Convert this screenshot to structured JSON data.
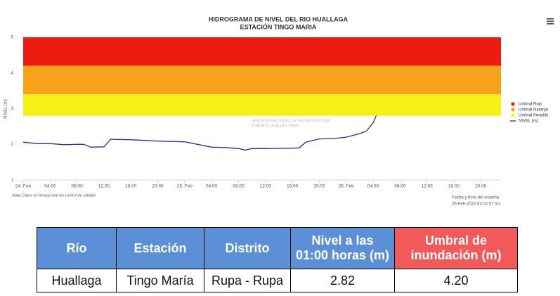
{
  "chart_data": {
    "type": "line",
    "title": "HIDROGRAMA DE NIVEL DEL RIO HUALLAGA",
    "subtitle": "ESTACIÓN TINGO MARIA",
    "y_label": "NIVEL (m)",
    "watermark": "Senamhi",
    "watermark_sub": [
      "SERVICIO NACIONAL DE METEOROLOGÍA",
      "E HIDROLOGÍA DEL PERÚ"
    ],
    "note": "Nota: Datos en tiempo real sin control de calidad",
    "timestamp": [
      "Fecha y hora del sistema",
      "26-Feb-2022 03:02:57 hrs."
    ],
    "xlim": [
      0,
      71
    ],
    "xticks": [
      {
        "value": 0,
        "label": "24. Feb"
      },
      {
        "value": 4,
        "label": "04:00"
      },
      {
        "value": 8,
        "label": "08:00"
      },
      {
        "value": 12,
        "label": "12:00"
      },
      {
        "value": 16,
        "label": "16:00"
      },
      {
        "value": 20,
        "label": "20:00"
      },
      {
        "value": 24,
        "label": "25. Feb"
      },
      {
        "value": 28,
        "label": "04:00"
      },
      {
        "value": 32,
        "label": "08:00"
      },
      {
        "value": 36,
        "label": "12:00"
      },
      {
        "value": 40,
        "label": "16:00"
      },
      {
        "value": 44,
        "label": "20:00"
      },
      {
        "value": 48,
        "label": "26. Feb"
      },
      {
        "value": 52,
        "label": "04:00"
      },
      {
        "value": 56,
        "label": "08:00"
      },
      {
        "value": 60,
        "label": "12:00"
      },
      {
        "value": 64,
        "label": "16:00"
      },
      {
        "value": 68,
        "label": "20:00"
      }
    ],
    "ylim": [
      1,
      5
    ],
    "yticks": [
      1,
      2,
      3,
      4,
      5
    ],
    "bands": [
      {
        "name": "Umbral Rojo",
        "color": "#ee1c10",
        "from": 4.2,
        "to": 5
      },
      {
        "name": "Umbral Naranja",
        "color": "#f7a21b",
        "from": 3.4,
        "to": 4.2
      },
      {
        "name": "Umbral Amarillo",
        "color": "#f8f014",
        "from": 2.8,
        "to": 3.4
      }
    ],
    "x": [
      0,
      2,
      4,
      6,
      8,
      9,
      10,
      12,
      13,
      16,
      20,
      24,
      28,
      30,
      32,
      33,
      34,
      36,
      40,
      41,
      42,
      44,
      46,
      48,
      50,
      51,
      52,
      52.5
    ],
    "series": [
      {
        "name": "NIVEL (m)",
        "color": "#2b2f9e",
        "values": [
          2.06,
          2.02,
          2.02,
          1.99,
          2.0,
          2.0,
          1.92,
          1.93,
          2.14,
          2.13,
          2.09,
          2.07,
          1.92,
          1.91,
          1.88,
          1.84,
          1.88,
          1.88,
          1.89,
          1.9,
          2.06,
          2.15,
          2.16,
          2.2,
          2.3,
          2.37,
          2.6,
          2.82
        ]
      }
    ]
  },
  "table": {
    "header": [
      "Río",
      "Estación",
      "Distrito",
      "Nivel a las 01:00 horas (m)",
      "Umbral de inundación (m)"
    ],
    "rows": [
      [
        "Huallaga",
        "Tingo María",
        "Rupa - Rupa",
        "2.82",
        "4.20"
      ]
    ]
  }
}
